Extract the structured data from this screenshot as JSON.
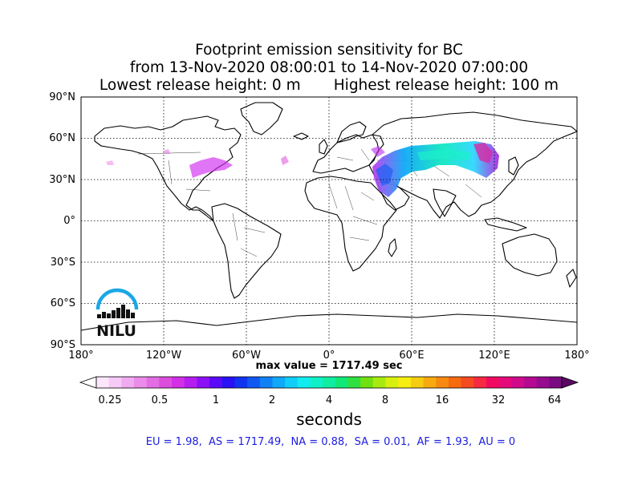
{
  "title": {
    "line1": "Footprint emission sensitivity for BC",
    "line2": "from 13-Nov-2020 08:00:01 to 14-Nov-2020 07:00:00",
    "line3": "Lowest release height: 0 m       Highest release height: 100 m"
  },
  "map": {
    "projection": "equirectangular (plate carrée)",
    "lat_labels": [
      "90°N",
      "60°N",
      "30°N",
      "0°",
      "30°S",
      "60°S",
      "90°S"
    ],
    "lon_labels": [
      "180°",
      "120°W",
      "60°W",
      "0°",
      "60°E",
      "120°E",
      "180°"
    ],
    "gridlines": "dotted, every 60° longitude and 30° latitude",
    "logo_text": "NILU",
    "logo_color": "#1aa7e6"
  },
  "max_value": "max value = 1717.49 sec",
  "colorbar": {
    "ticks": [
      "0.25",
      "0.5",
      "1",
      "2",
      "4",
      "8",
      "16",
      "32",
      "64"
    ],
    "unit": "seconds",
    "colors": [
      "#fbe6fb",
      "#f6c9f6",
      "#f0aaf0",
      "#ea8cea",
      "#e36ee3",
      "#dc4ddc",
      "#d22fe6",
      "#b41ef0",
      "#8c10f5",
      "#5a0af8",
      "#2a10f5",
      "#1034f0",
      "#1058f2",
      "#1080f5",
      "#10a8f8",
      "#10cdfa",
      "#10ecf0",
      "#10f0c8",
      "#10eca0",
      "#10e878",
      "#30e040",
      "#70e010",
      "#a8ea10",
      "#d8f010",
      "#f6ee10",
      "#f6cc10",
      "#f6aa10",
      "#f68a10",
      "#f66a10",
      "#f64a20",
      "#f62a40",
      "#f20a60",
      "#e40a7a",
      "#d00a8a",
      "#b40a92",
      "#960a90",
      "#7a0a80"
    ],
    "under_color": "#ffffff",
    "over_color": "#5a0a62"
  },
  "region_values": "EU = 1.98,  AS = 1717.49,  NA = 0.88,  SA = 0.01,  AF = 1.93,  AU = 0"
}
